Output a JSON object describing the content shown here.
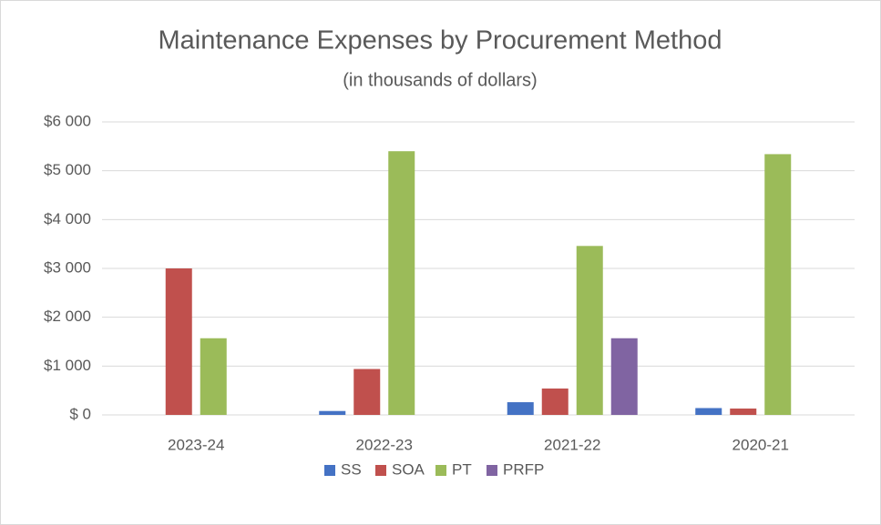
{
  "chart_data": {
    "type": "bar",
    "title": "Maintenance Expenses by Procurement Method",
    "subtitle": "(in thousands of dollars)",
    "categories": [
      "2023-24",
      "2022-23",
      "2021-22",
      "2020-21"
    ],
    "series": [
      {
        "name": "SS",
        "color": "#4472c4",
        "values": [
          0,
          80,
          260,
          140
        ]
      },
      {
        "name": "SOA",
        "color": "#c0504d",
        "values": [
          3000,
          940,
          540,
          130
        ]
      },
      {
        "name": "PT",
        "color": "#9bbb59",
        "values": [
          1570,
          5400,
          3460,
          5340
        ]
      },
      {
        "name": "PRFP",
        "color": "#8064a2",
        "values": [
          0,
          0,
          1570,
          0
        ]
      }
    ],
    "ylim": [
      0,
      6000
    ],
    "yticks": [
      {
        "value": 0,
        "label": "$ 0"
      },
      {
        "value": 1000,
        "label": "$1 000"
      },
      {
        "value": 2000,
        "label": "$2 000"
      },
      {
        "value": 3000,
        "label": "$3 000"
      },
      {
        "value": 4000,
        "label": "$4 000"
      },
      {
        "value": 5000,
        "label": "$5 000"
      },
      {
        "value": 6000,
        "label": "$6 000"
      }
    ],
    "grid": true,
    "legend": "bottom"
  }
}
